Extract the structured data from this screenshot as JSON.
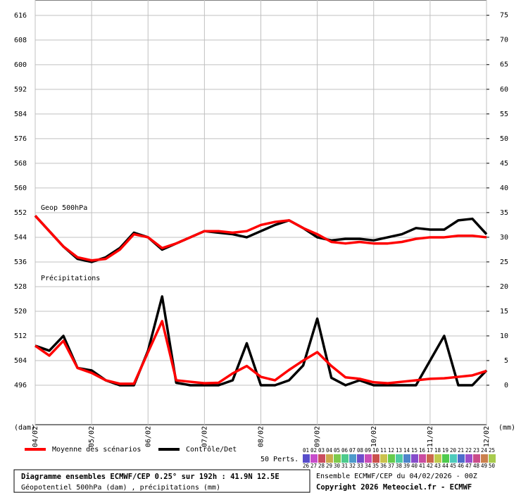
{
  "chart_data": {
    "type": "line",
    "title": "Diagramme ensembles ECMWF/CEP 0.25° sur 192h : 41.9N 12.5E",
    "subtitle": "Géopotentiel 500hPa (dam) , précipitations (mm)",
    "run_label": "Ensemble ECMWF/CEP du 04/02/2026 - 00Z",
    "copyright": "Copyright 2026 Meteociel.fr - ECMWF",
    "y_label": "(dam)",
    "y2_label": "(mm)",
    "annotations": [
      "Geop 500hPa",
      "Précipitations"
    ],
    "perturbations_label": "50 Perts.",
    "perturbations": [
      "01",
      "02",
      "03",
      "04",
      "05",
      "06",
      "07",
      "08",
      "09",
      "10",
      "11",
      "12",
      "13",
      "14",
      "15",
      "16",
      "17",
      "18",
      "19",
      "20",
      "21",
      "22",
      "23",
      "24",
      "25",
      "26",
      "27",
      "28",
      "29",
      "30",
      "31",
      "32",
      "33",
      "34",
      "35",
      "36",
      "37",
      "38",
      "39",
      "40",
      "41",
      "42",
      "43",
      "44",
      "45",
      "46",
      "47",
      "48",
      "49",
      "50"
    ],
    "x": [
      0,
      6,
      12,
      18,
      24,
      30,
      36,
      42,
      48,
      54,
      60,
      66,
      72,
      78,
      84,
      90,
      96,
      102,
      108,
      114,
      120,
      126,
      132,
      138,
      144,
      150,
      156,
      162,
      168,
      174,
      180,
      186,
      192
    ],
    "xlim": [
      0,
      192
    ],
    "xticks": [
      {
        "value": 0,
        "label": "04/02"
      },
      {
        "value": 24,
        "label": "05/02"
      },
      {
        "value": 48,
        "label": "06/02"
      },
      {
        "value": 72,
        "label": "07/02"
      },
      {
        "value": 96,
        "label": "08/02"
      },
      {
        "value": 120,
        "label": "09/02"
      },
      {
        "value": 144,
        "label": "10/02"
      },
      {
        "value": 168,
        "label": "11/02"
      },
      {
        "value": 192,
        "label": "12/02"
      }
    ],
    "ylim": [
      483.2,
      621
    ],
    "yticks": [
      496,
      504,
      512,
      520,
      528,
      536,
      544,
      552,
      560,
      568,
      576,
      584,
      592,
      600,
      608,
      616
    ],
    "y2lim": [
      -8,
      78.1
    ],
    "y2ticks": [
      0,
      5,
      10,
      15,
      20,
      25,
      30,
      35,
      40,
      45,
      50,
      55,
      60,
      65,
      70,
      75
    ],
    "grid": true,
    "series": [
      {
        "name": "Moyenne des scénarios",
        "color": "#ff0000",
        "values": [
          551,
          546,
          541,
          537.5,
          536.5,
          537,
          540,
          545,
          544,
          540.5,
          542,
          544,
          546,
          546,
          545.5,
          546,
          548,
          549,
          549.5,
          547,
          545,
          542.5,
          542,
          542.5,
          542,
          542,
          542.5,
          543.5,
          544,
          544,
          544.5,
          544.5,
          544
        ],
        "precip": [
          8,
          6,
          9,
          3.5,
          2.5,
          1,
          0.3,
          0.3,
          6.7,
          13,
          1,
          0.7,
          0.4,
          0.5,
          2.4,
          3.9,
          1.7,
          1,
          3.1,
          5,
          6.7,
          3.9,
          1.6,
          1.3,
          0.6,
          0.4,
          0.7,
          1,
          1.3,
          1.4,
          1.7,
          2,
          2.9
        ]
      },
      {
        "name": "Contrôle/Det",
        "color": "#000000",
        "values": [
          551,
          546,
          541,
          537,
          536,
          537.5,
          540.5,
          545.5,
          544,
          540,
          542,
          544,
          546,
          545.5,
          545,
          544,
          546,
          548,
          549.5,
          547,
          544,
          543,
          543.5,
          543.5,
          543,
          544,
          545,
          547,
          546.5,
          546.5,
          549.5,
          550,
          545
        ],
        "precip": [
          8,
          7,
          10,
          3.5,
          3,
          1,
          0,
          0,
          7,
          18,
          0.5,
          0,
          0,
          0,
          1,
          8.5,
          0,
          0,
          1,
          4,
          13.5,
          1.5,
          0,
          1,
          0,
          0,
          0,
          0,
          5,
          10,
          0,
          0,
          3
        ]
      }
    ]
  }
}
